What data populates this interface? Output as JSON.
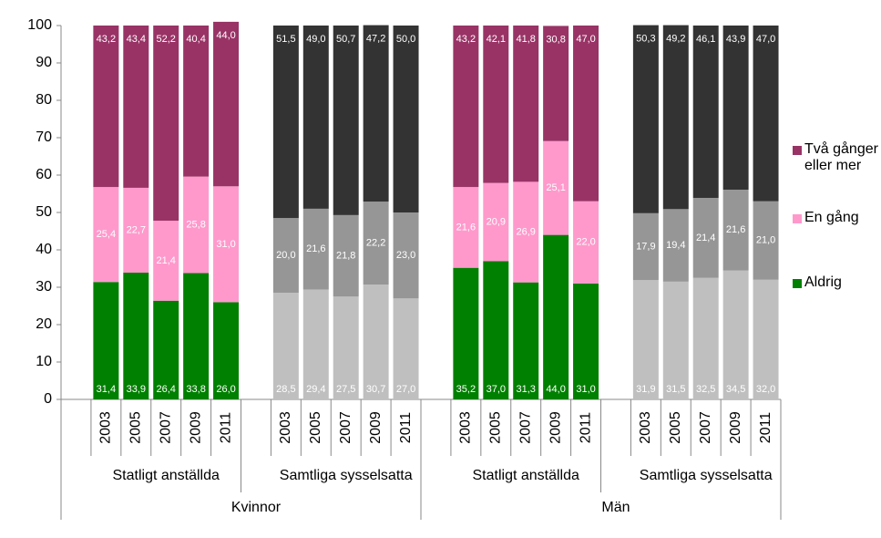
{
  "chart_data": {
    "type": "stacked-bar",
    "ylim": [
      0,
      100
    ],
    "yticks": [
      0,
      10,
      20,
      30,
      40,
      50,
      60,
      70,
      80,
      90,
      100
    ],
    "groups": [
      {
        "name": "Kvinnor",
        "subgroups": [
          "Statligt anställda",
          "Samtliga sysselsatta"
        ]
      },
      {
        "name": "Män",
        "subgroups": [
          "Statligt anställda",
          "Samtliga sysselsatta"
        ]
      }
    ],
    "categories": [
      "2003",
      "2005",
      "2007",
      "2009",
      "2011",
      "2003",
      "2005",
      "2007",
      "2009",
      "2011",
      "2003",
      "2005",
      "2007",
      "2009",
      "2011",
      "2003",
      "2005",
      "2007",
      "2009",
      "2011"
    ],
    "series": [
      {
        "name": "Aldrig",
        "color": "#008000",
        "colors": [
          "#008000",
          "#bfbfbf",
          "#008000",
          "#bfbfbf"
        ],
        "values": [
          31.4,
          33.9,
          26.4,
          33.8,
          26.0,
          28.5,
          29.4,
          27.5,
          30.7,
          27.0,
          35.2,
          37.0,
          31.3,
          44.0,
          31.0,
          31.9,
          31.5,
          32.5,
          34.5,
          32.0
        ],
        "value_labels": [
          "31,4",
          "33,9",
          "26,4",
          "33,8",
          "26,0",
          "28,5",
          "29,4",
          "27,5",
          "30,7",
          "27,0",
          "35,2",
          "37,0",
          "31,3",
          "44,0",
          "31,0",
          "31,9",
          "31,5",
          "32,5",
          "34,5",
          "32,0"
        ]
      },
      {
        "name": "En gång",
        "color": "#ff99cc",
        "colors": [
          "#ff99cc",
          "#969696",
          "#ff99cc",
          "#969696"
        ],
        "values": [
          25.4,
          22.7,
          21.4,
          25.8,
          31.0,
          20.0,
          21.6,
          21.8,
          22.2,
          23.0,
          21.6,
          20.9,
          26.9,
          25.1,
          22.0,
          17.9,
          19.4,
          21.4,
          21.6,
          21.0
        ],
        "value_labels": [
          "25,4",
          "22,7",
          "21,4",
          "25,8",
          "31,0",
          "20,0",
          "21,6",
          "21,8",
          "22,2",
          "23,0",
          "21,6",
          "20,9",
          "26,9",
          "25,1",
          "22,0",
          "17,9",
          "19,4",
          "21,4",
          "21,6",
          "21,0"
        ]
      },
      {
        "name": "Två gånger eller mer",
        "color": "#993366",
        "colors": [
          "#993366",
          "#333333",
          "#993366",
          "#333333"
        ],
        "values": [
          43.2,
          43.4,
          52.2,
          40.4,
          44.0,
          51.5,
          49.0,
          50.7,
          47.2,
          50.0,
          43.2,
          42.1,
          41.8,
          30.8,
          47.0,
          50.3,
          49.2,
          46.1,
          43.9,
          47.0
        ],
        "value_labels": [
          "43,2",
          "43,4",
          "52,2",
          "40,4",
          "44,0",
          "51,5",
          "49,0",
          "50,7",
          "47,2",
          "50,0",
          "43,2",
          "42,1",
          "41,8",
          "30,8",
          "47,0",
          "50,3",
          "49,2",
          "46,1",
          "43,9",
          "47,0"
        ]
      }
    ]
  }
}
